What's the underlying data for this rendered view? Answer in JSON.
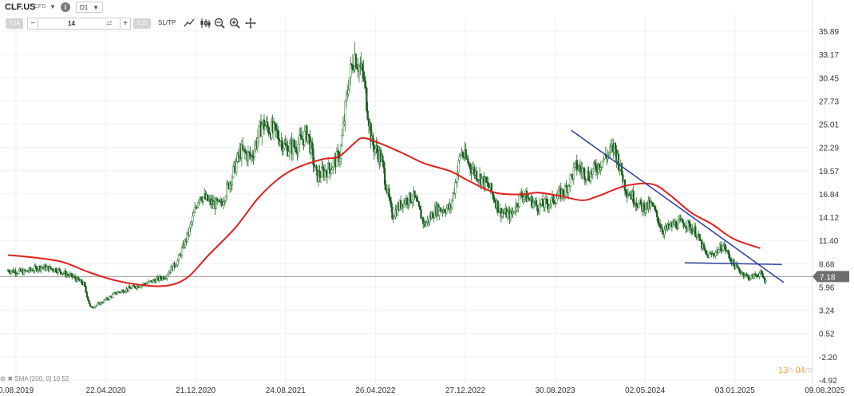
{
  "toolbar": {
    "symbol": "CLF.US",
    "instrument_type": "CFD",
    "info_label": "i",
    "timeframe": "D1",
    "sell_price": "7.14",
    "buy_price": "7.22",
    "lot_minus": "−",
    "lot_value": "14",
    "lot_swap": "⇄",
    "lot_plus": "+",
    "sltp_label": "SL/TP",
    "tools": [
      "line-chart-icon",
      "candles-icon",
      "zoom-out-icon",
      "zoom-in-icon",
      "crosshair-icon"
    ]
  },
  "indicator_label": "SMA [200, 0]  10.52",
  "countdown": {
    "hours": "13",
    "h": "h",
    "minutes": "04",
    "m": "m"
  },
  "colors": {
    "candle_up": "#2e7d32",
    "candle_down": "#1b5e20",
    "sma": "#e0201b",
    "trendline": "#2c3f9e",
    "current_price_line": "#9e9e9e",
    "current_price_tag": "#6e6e6e"
  },
  "chart_data": {
    "type": "line",
    "instrument": "CLF.US",
    "timeframe": "D1",
    "x_ticks": [
      "0.08.2019",
      "22.04.2020",
      "21.12.2020",
      "24.08.2021",
      "26.04.2022",
      "27.12.2022",
      "30.08.2023",
      "02.05.2024",
      "03.01.2025",
      "09.08.2025"
    ],
    "y_ticks": [
      "35.89",
      "33.17",
      "30.45",
      "27.73",
      "25.01",
      "22.29",
      "19.57",
      "16.84",
      "14.12",
      "11.40",
      "8.68",
      "5.96",
      "3.24",
      "0.52",
      "-2.20",
      "-4.92"
    ],
    "y_range": [
      -4.92,
      35.89
    ],
    "current_price": "7.18",
    "series": [
      {
        "name": "price",
        "points": [
          [
            "2019-08-01",
            7.9
          ],
          [
            "2019-09-15",
            7.7
          ],
          [
            "2019-11-01",
            8.3
          ],
          [
            "2019-12-15",
            8.0
          ],
          [
            "2020-02-01",
            7.1
          ],
          [
            "2020-03-01",
            6.3
          ],
          [
            "2020-03-20",
            3.5
          ],
          [
            "2020-04-22",
            4.2
          ],
          [
            "2020-06-01",
            5.3
          ],
          [
            "2020-07-15",
            5.9
          ],
          [
            "2020-09-01",
            6.5
          ],
          [
            "2020-10-15",
            7.2
          ],
          [
            "2020-11-20",
            9.0
          ],
          [
            "2020-12-21",
            12.3
          ],
          [
            "2021-01-20",
            16.8
          ],
          [
            "2021-02-20",
            15.8
          ],
          [
            "2021-03-20",
            15.5
          ],
          [
            "2021-04-20",
            18.8
          ],
          [
            "2021-05-15",
            21.8
          ],
          [
            "2021-06-15",
            21.2
          ],
          [
            "2021-07-15",
            25.0
          ],
          [
            "2021-08-24",
            24.0
          ],
          [
            "2021-09-20",
            22.2
          ],
          [
            "2021-10-20",
            22.5
          ],
          [
            "2021-11-20",
            24.0
          ],
          [
            "2021-12-15",
            18.9
          ],
          [
            "2022-01-20",
            19.8
          ],
          [
            "2022-02-20",
            21.5
          ],
          [
            "2022-03-15",
            30.0
          ],
          [
            "2022-04-01",
            33.2
          ],
          [
            "2022-04-26",
            30.5
          ],
          [
            "2022-05-20",
            22.8
          ],
          [
            "2022-06-15",
            21.0
          ],
          [
            "2022-07-15",
            14.3
          ],
          [
            "2022-08-15",
            16.0
          ],
          [
            "2022-09-15",
            16.5
          ],
          [
            "2022-10-15",
            13.2
          ],
          [
            "2022-11-15",
            15.0
          ],
          [
            "2022-12-27",
            15.2
          ],
          [
            "2023-01-25",
            21.8
          ],
          [
            "2023-03-01",
            19.6
          ],
          [
            "2023-04-15",
            17.6
          ],
          [
            "2023-05-15",
            14.8
          ],
          [
            "2023-06-15",
            14.3
          ],
          [
            "2023-07-15",
            16.9
          ],
          [
            "2023-08-30",
            15.4
          ],
          [
            "2023-10-01",
            15.8
          ],
          [
            "2023-11-15",
            17.3
          ],
          [
            "2023-12-15",
            20.1
          ],
          [
            "2024-01-20",
            19.0
          ],
          [
            "2024-03-15",
            21.6
          ],
          [
            "2024-04-01",
            22.3
          ],
          [
            "2024-05-02",
            17.5
          ],
          [
            "2024-06-15",
            15.3
          ],
          [
            "2024-07-15",
            15.5
          ],
          [
            "2024-08-15",
            12.5
          ],
          [
            "2024-09-15",
            13.3
          ],
          [
            "2024-10-15",
            13.5
          ],
          [
            "2024-11-15",
            12.4
          ],
          [
            "2024-12-15",
            9.6
          ],
          [
            "2025-01-03",
            9.8
          ],
          [
            "2025-02-01",
            10.8
          ],
          [
            "2025-03-01",
            8.6
          ],
          [
            "2025-03-20",
            7.8
          ],
          [
            "2025-04-15",
            7.0
          ],
          [
            "2025-05-15",
            7.6
          ],
          [
            "2025-06-01",
            6.5
          ]
        ]
      },
      {
        "name": "SMA [200, 0]",
        "points": [
          [
            "2019-08-01",
            9.7
          ],
          [
            "2019-10-15",
            9.4
          ],
          [
            "2019-12-31",
            8.9
          ],
          [
            "2020-03-15",
            7.7
          ],
          [
            "2020-06-01",
            6.7
          ],
          [
            "2020-09-01",
            6.1
          ],
          [
            "2020-11-01",
            6.2
          ],
          [
            "2020-12-21",
            7.2
          ],
          [
            "2021-02-15",
            9.7
          ],
          [
            "2021-05-01",
            12.9
          ],
          [
            "2021-07-01",
            16.2
          ],
          [
            "2021-08-24",
            18.4
          ],
          [
            "2021-10-15",
            19.8
          ],
          [
            "2021-12-31",
            20.9
          ],
          [
            "2022-02-15",
            21.2
          ],
          [
            "2022-04-01",
            22.8
          ],
          [
            "2022-04-26",
            23.4
          ],
          [
            "2022-06-15",
            22.7
          ],
          [
            "2022-08-15",
            21.6
          ],
          [
            "2022-10-15",
            20.4
          ],
          [
            "2022-12-27",
            19.5
          ],
          [
            "2023-02-15",
            18.4
          ],
          [
            "2023-05-01",
            17.0
          ],
          [
            "2023-07-15",
            16.8
          ],
          [
            "2023-08-30",
            17.0
          ],
          [
            "2023-11-01",
            16.6
          ],
          [
            "2024-01-01",
            16.1
          ],
          [
            "2024-02-15",
            16.6
          ],
          [
            "2024-05-02",
            17.8
          ],
          [
            "2024-07-15",
            18.0
          ],
          [
            "2024-09-01",
            16.8
          ],
          [
            "2024-11-01",
            14.7
          ],
          [
            "2024-12-31",
            13.3
          ],
          [
            "2025-03-01",
            11.6
          ],
          [
            "2025-05-15",
            10.5
          ]
        ]
      },
      {
        "name": "trendline-1",
        "points": [
          [
            "2023-12-01",
            24.3
          ],
          [
            "2025-07-20",
            6.5
          ]
        ]
      },
      {
        "name": "trendline-2",
        "points": [
          [
            "2024-10-15",
            8.8
          ],
          [
            "2025-07-15",
            8.6
          ]
        ]
      }
    ]
  }
}
